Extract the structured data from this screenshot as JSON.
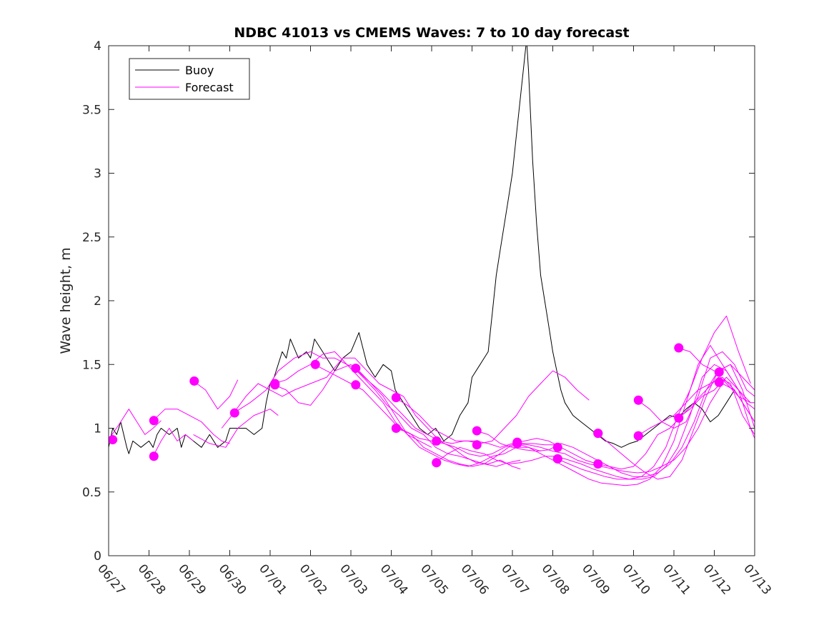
{
  "chart_data": {
    "type": "line",
    "title": "NDBC 41013 vs CMEMS Waves: 7 to 10 day forecast",
    "xlabel": "",
    "ylabel": "Wave height, m",
    "x_tick_labels": [
      "06/27",
      "06/28",
      "06/29",
      "06/30",
      "07/01",
      "07/02",
      "07/03",
      "07/04",
      "07/05",
      "07/06",
      "07/07",
      "07/08",
      "07/09",
      "07/10",
      "07/11",
      "07/12",
      "07/13"
    ],
    "y_tick_labels": [
      "0",
      "0.5",
      "1",
      "1.5",
      "2",
      "2.5",
      "3",
      "3.5",
      "4"
    ],
    "xlim": [
      0,
      16
    ],
    "ylim": [
      0,
      4
    ],
    "x_unit": "days from 06/27",
    "legend": {
      "placement": "top-left",
      "entries": [
        "Buoy",
        "Forecast"
      ]
    },
    "colors": {
      "buoy": "#000000",
      "forecast": "#ff00ff"
    },
    "series": [
      {
        "name": "Buoy",
        "x": [
          0,
          0.1,
          0.2,
          0.3,
          0.45,
          0.5,
          0.6,
          0.8,
          1.0,
          1.1,
          1.2,
          1.3,
          1.5,
          1.7,
          1.8,
          1.9,
          2.1,
          2.3,
          2.5,
          2.7,
          2.9,
          3.0,
          3.2,
          3.4,
          3.6,
          3.8,
          3.9,
          4.0,
          4.1,
          4.3,
          4.4,
          4.5,
          4.7,
          4.9,
          5.0,
          5.1,
          5.3,
          5.5,
          5.6,
          5.8,
          6.0,
          6.2,
          6.4,
          6.6,
          6.8,
          7.0,
          7.1,
          7.3,
          7.5,
          7.7,
          7.9,
          8.1,
          8.3,
          8.5,
          8.7,
          8.9,
          9.0,
          9.2,
          9.4,
          9.5,
          9.6,
          9.7,
          9.8,
          9.9,
          10.0,
          10.1,
          10.2,
          10.3,
          10.35,
          10.4,
          10.5,
          10.6,
          10.7,
          10.8,
          10.9,
          11.0,
          11.1,
          11.2,
          11.3,
          11.5,
          11.7,
          11.9,
          12.1,
          12.3,
          12.5,
          12.7,
          12.9,
          13.1,
          13.3,
          13.5,
          13.7,
          13.9,
          14.1,
          14.3,
          14.5,
          14.7,
          14.9,
          15.1,
          15.3,
          15.5
        ],
        "y": [
          0.85,
          1.0,
          0.95,
          1.05,
          0.85,
          0.8,
          0.9,
          0.85,
          0.9,
          0.85,
          0.95,
          1.0,
          0.95,
          1.0,
          0.85,
          0.95,
          0.9,
          0.85,
          0.95,
          0.85,
          0.9,
          1.0,
          1.0,
          1.0,
          0.95,
          1.0,
          1.2,
          1.35,
          1.4,
          1.6,
          1.55,
          1.7,
          1.55,
          1.6,
          1.55,
          1.7,
          1.6,
          1.5,
          1.45,
          1.55,
          1.6,
          1.75,
          1.5,
          1.4,
          1.5,
          1.45,
          1.3,
          1.2,
          1.1,
          1.0,
          0.95,
          1.0,
          0.9,
          0.95,
          1.1,
          1.2,
          1.4,
          1.5,
          1.6,
          1.9,
          2.2,
          2.4,
          2.6,
          2.8,
          3.0,
          3.3,
          3.6,
          3.9,
          4.05,
          3.8,
          3.1,
          2.6,
          2.2,
          2.0,
          1.8,
          1.6,
          1.45,
          1.3,
          1.2,
          1.1,
          1.05,
          1.0,
          0.95,
          0.9,
          0.88,
          0.85,
          0.88,
          0.9,
          0.95,
          1.0,
          1.05,
          1.1,
          1.08,
          1.15,
          1.2,
          1.15,
          1.05,
          1.1,
          1.2,
          1.3
        ]
      },
      {
        "name": "",
        "x": [
          0,
          0.3,
          0.5,
          0.7,
          0.9,
          1.1,
          1.3
        ],
        "y": [
          0.91,
          1.05,
          1.15,
          1.05,
          0.95,
          1.0,
          1.06
        ]
      },
      {
        "name": "",
        "x": [
          1.1,
          1.3,
          1.5,
          1.7,
          1.9,
          2.1
        ],
        "y": [
          0.78,
          0.9,
          1.0,
          0.9,
          0.95,
          0.9
        ]
      },
      {
        "name": "",
        "x": [
          1.1,
          1.4,
          1.7,
          2.0,
          2.3,
          2.6,
          2.8,
          3.0
        ],
        "y": [
          1.06,
          1.15,
          1.15,
          1.1,
          1.05,
          0.95,
          0.9,
          0.88
        ]
      },
      {
        "name": "",
        "x": [
          2.1,
          2.4,
          2.7,
          3.0,
          3.2
        ],
        "y": [
          1.37,
          1.3,
          1.15,
          1.25,
          1.38
        ]
      },
      {
        "name": "",
        "x": [
          2.1,
          2.5,
          2.9,
          3.2,
          3.6,
          4.0,
          4.2
        ],
        "y": [
          0.95,
          0.88,
          0.85,
          1.0,
          1.1,
          1.15,
          1.1
        ]
      },
      {
        "name": "",
        "x": [
          2.8,
          3.1,
          3.5,
          3.9,
          4.2,
          4.6,
          5.0,
          5.3,
          5.6,
          5.9,
          6.2,
          6.5,
          6.8,
          7.1,
          7.4,
          7.7,
          8.0
        ],
        "y": [
          1.0,
          1.12,
          1.2,
          1.3,
          1.45,
          1.55,
          1.6,
          1.55,
          1.55,
          1.5,
          1.4,
          1.3,
          1.2,
          1.05,
          0.95,
          0.9,
          0.85
        ]
      },
      {
        "name": "",
        "x": [
          3.1,
          3.4,
          3.7,
          4.0,
          4.3,
          4.6,
          5.0,
          5.4,
          5.8,
          6.1,
          6.4,
          6.7,
          7.0,
          7.3,
          7.6,
          7.9,
          8.2,
          8.5,
          8.8,
          9.1,
          9.4,
          9.7,
          10.0,
          10.2
        ],
        "y": [
          1.12,
          1.25,
          1.35,
          1.3,
          1.25,
          1.3,
          1.35,
          1.4,
          1.55,
          1.55,
          1.45,
          1.35,
          1.3,
          1.25,
          1.1,
          1.0,
          0.9,
          0.85,
          0.78,
          0.73,
          0.72,
          0.75,
          0.7,
          0.68
        ]
      },
      {
        "name": "",
        "x": [
          4.1,
          4.4,
          4.7,
          5.0,
          5.3,
          5.6,
          5.9,
          6.2,
          6.5,
          6.8,
          7.1,
          7.4,
          7.7,
          8.0,
          8.3,
          8.6,
          8.9,
          9.2,
          9.5,
          9.8,
          10.1,
          10.4,
          10.7
        ],
        "y": [
          1.35,
          1.38,
          1.45,
          1.5,
          1.58,
          1.6,
          1.5,
          1.45,
          1.35,
          1.25,
          1.1,
          0.95,
          0.85,
          0.8,
          0.75,
          0.72,
          0.7,
          0.73,
          0.78,
          0.8,
          0.85,
          0.85,
          0.82
        ]
      },
      {
        "name": "",
        "x": [
          4.1,
          4.4,
          4.7,
          5.0,
          5.3,
          5.6,
          6.0,
          6.3,
          6.6,
          6.9,
          7.2,
          7.5,
          7.8,
          8.1,
          8.4,
          8.7,
          9.0,
          9.3,
          9.6,
          9.9,
          10.2
        ],
        "y": [
          1.34,
          1.3,
          1.2,
          1.18,
          1.3,
          1.45,
          1.5,
          1.4,
          1.3,
          1.18,
          1.1,
          1.0,
          0.95,
          0.85,
          0.8,
          0.78,
          0.75,
          0.72,
          0.7,
          0.73,
          0.75
        ]
      },
      {
        "name": "",
        "x": [
          5.1,
          5.4,
          5.7,
          6.0,
          6.3,
          6.6,
          6.9,
          7.2,
          7.5,
          7.8,
          8.1,
          8.4,
          8.7,
          9.0,
          9.3,
          9.6,
          9.9,
          10.2,
          10.5,
          10.8,
          11.1
        ],
        "y": [
          1.5,
          1.45,
          1.4,
          1.35,
          1.3,
          1.2,
          1.1,
          1.0,
          0.95,
          0.85,
          0.8,
          0.75,
          0.72,
          0.7,
          0.72,
          0.78,
          0.85,
          0.88,
          0.88,
          0.87,
          0.87
        ]
      },
      {
        "name": "",
        "x": [
          6.1,
          6.4,
          6.7,
          7.0,
          7.3,
          7.6,
          7.9,
          8.2,
          8.5,
          8.8,
          9.1,
          9.4,
          9.7,
          10.0,
          10.3,
          10.6,
          10.9,
          11.2,
          11.5,
          11.8,
          12.1,
          12.4,
          12.7,
          13.0,
          13.3,
          13.6,
          13.9,
          14.2,
          14.5,
          14.8,
          15.1,
          15.4,
          15.7,
          16.0
        ],
        "y": [
          1.47,
          1.38,
          1.3,
          1.2,
          1.1,
          1.0,
          0.95,
          0.9,
          0.88,
          0.9,
          0.9,
          0.88,
          0.85,
          0.88,
          0.9,
          0.92,
          0.9,
          0.85,
          0.8,
          0.75,
          0.72,
          0.7,
          0.68,
          0.7,
          0.8,
          0.95,
          1.0,
          1.1,
          1.2,
          1.3,
          1.4,
          1.35,
          1.1,
          0.95
        ]
      },
      {
        "name": "",
        "x": [
          7.1,
          7.4,
          7.7,
          8.0,
          8.3,
          8.6,
          8.9,
          9.2,
          9.5,
          9.8,
          10.1,
          10.4,
          10.7,
          11.0,
          11.3,
          11.6,
          11.9
        ],
        "y": [
          1.24,
          1.18,
          1.1,
          1.0,
          0.95,
          0.9,
          0.9,
          0.88,
          0.9,
          1.0,
          1.1,
          1.25,
          1.35,
          1.45,
          1.4,
          1.3,
          1.22
        ]
      },
      {
        "name": "",
        "x": [
          7.1,
          7.4,
          7.7,
          8.0,
          8.3,
          8.6,
          8.9,
          9.2,
          9.5,
          9.8,
          10.1,
          10.4,
          10.7,
          11.0,
          11.3,
          11.6,
          11.9,
          12.2,
          12.5,
          12.8,
          13.1,
          13.4,
          13.7,
          14.0,
          14.3,
          14.6,
          14.9,
          15.2,
          15.5,
          15.8,
          16.0
        ],
        "y": [
          1.0,
          0.97,
          0.92,
          0.9,
          0.88,
          0.85,
          0.8,
          0.78,
          0.8,
          0.85,
          0.88,
          0.87,
          0.85,
          0.82,
          0.8,
          0.75,
          0.72,
          0.7,
          0.68,
          0.66,
          0.65,
          0.66,
          0.7,
          0.75,
          0.85,
          1.0,
          1.2,
          1.35,
          1.3,
          1.15,
          1.05
        ]
      },
      {
        "name": "",
        "x": [
          8.1,
          8.4,
          8.7,
          9.0,
          9.3,
          9.6,
          9.9,
          10.2,
          10.5,
          10.8,
          11.1,
          11.4,
          11.7,
          12.0,
          12.3,
          12.6,
          12.9,
          13.2,
          13.5,
          13.8,
          14.1,
          14.4,
          14.7,
          15.0,
          15.3,
          15.6,
          15.9
        ],
        "y": [
          0.73,
          0.8,
          0.85,
          0.82,
          0.8,
          0.75,
          0.72,
          0.73,
          0.75,
          0.78,
          0.78,
          0.75,
          0.72,
          0.68,
          0.65,
          0.62,
          0.6,
          0.6,
          0.62,
          0.7,
          0.85,
          1.1,
          1.4,
          1.5,
          1.45,
          1.3,
          1.2
        ]
      },
      {
        "name": "",
        "x": [
          9.1,
          9.4,
          9.7,
          10.0,
          10.3,
          10.6,
          10.9,
          11.2,
          11.5,
          11.8,
          12.1,
          12.4,
          12.7,
          13.0,
          13.3,
          13.6,
          13.9,
          14.2,
          14.5,
          14.8,
          15.1,
          15.4,
          15.7,
          16.0
        ],
        "y": [
          0.98,
          0.95,
          0.88,
          0.85,
          0.83,
          0.82,
          0.83,
          0.88,
          0.85,
          0.8,
          0.75,
          0.7,
          0.65,
          0.62,
          0.62,
          0.65,
          0.72,
          0.85,
          1.05,
          1.3,
          1.45,
          1.5,
          1.3,
          1.0
        ]
      },
      {
        "name": "",
        "x": [
          10.1,
          10.4,
          10.7,
          11.0,
          11.3,
          11.6,
          11.9,
          12.2,
          12.5,
          12.8,
          13.1,
          13.4,
          13.7,
          14.0,
          14.3,
          14.6,
          14.9,
          15.2,
          15.5,
          15.8,
          16.0
        ],
        "y": [
          0.88,
          0.85,
          0.8,
          0.75,
          0.7,
          0.65,
          0.6,
          0.57,
          0.56,
          0.55,
          0.56,
          0.6,
          0.7,
          0.9,
          1.2,
          1.5,
          1.65,
          1.5,
          1.35,
          1.2,
          1.15
        ]
      },
      {
        "name": "",
        "x": [
          11.1,
          11.4,
          11.7,
          12.0,
          12.3,
          12.6,
          12.9,
          13.2,
          13.5,
          13.8,
          14.1,
          14.4,
          14.7,
          15.0,
          15.3,
          15.6,
          15.9
        ],
        "y": [
          0.76,
          0.72,
          0.68,
          0.65,
          0.62,
          0.6,
          0.6,
          0.62,
          0.7,
          0.85,
          1.1,
          1.3,
          1.55,
          1.75,
          1.88,
          1.6,
          1.35
        ]
      },
      {
        "name": "",
        "x": [
          12.1,
          12.4,
          12.7,
          13.0,
          13.3,
          13.6,
          13.9,
          14.2,
          14.5,
          14.8,
          15.1,
          15.4,
          15.7,
          16.0
        ],
        "y": [
          0.96,
          0.88,
          0.8,
          0.72,
          0.65,
          0.6,
          0.62,
          0.75,
          1.0,
          1.25,
          1.45,
          1.5,
          1.4,
          1.3
        ]
      },
      {
        "name": "",
        "x": [
          13.1,
          13.4,
          13.7,
          14.0,
          14.3,
          14.6,
          14.9,
          15.2,
          15.5,
          15.8,
          16.0
        ],
        "y": [
          1.22,
          1.15,
          1.05,
          1.0,
          1.05,
          1.25,
          1.55,
          1.6,
          1.5,
          1.3,
          1.25
        ]
      },
      {
        "name": "",
        "x": [
          13.1,
          13.4,
          13.7,
          14.0,
          14.3,
          14.6,
          14.9,
          15.2,
          15.5,
          15.8,
          16.0
        ],
        "y": [
          0.94,
          1.0,
          1.05,
          1.1,
          1.2,
          1.3,
          1.35,
          1.4,
          1.3,
          1.15,
          1.05
        ]
      },
      {
        "name": "",
        "x": [
          14.1,
          14.4,
          14.7,
          15.0,
          15.3,
          15.6,
          15.9,
          16.0
        ],
        "y": [
          1.63,
          1.6,
          1.5,
          1.45,
          1.35,
          1.25,
          1.2,
          1.2
        ]
      },
      {
        "name": "",
        "x": [
          14.1,
          14.4,
          14.7,
          15.0,
          15.3,
          15.6,
          15.9,
          16.0
        ],
        "y": [
          1.08,
          1.15,
          1.25,
          1.3,
          1.4,
          1.3,
          1.0,
          0.92
        ]
      }
    ],
    "markers": {
      "x": [
        0.1,
        1.12,
        2.12,
        3.12,
        4.12,
        5.12,
        6.12,
        7.12,
        8.12,
        9.12,
        10.12,
        11.12,
        12.12,
        13.12,
        14.12,
        15.12,
        4.12,
        6.12,
        7.12,
        8.12,
        9.12,
        10.12,
        11.12,
        12.12,
        13.12,
        14.12,
        15.12,
        8.12,
        10.12,
        11.12,
        12.12,
        13.12
      ],
      "y": [
        0.91,
        1.06,
        1.37,
        1.12,
        1.34,
        1.5,
        1.34,
        1.24,
        0.9,
        0.98,
        0.88,
        0.85,
        0.96,
        1.22,
        1.63,
        1.44,
        1.35,
        1.47,
        1.0,
        0.73,
        0.87,
        0.89,
        0.76,
        0.72,
        0.94,
        1.08,
        1.36,
        0.73,
        0.88,
        0.76,
        0.96,
        0.94
      ]
    },
    "extra_markers": {
      "x": [
        1.12
      ],
      "y": [
        0.78
      ]
    }
  }
}
